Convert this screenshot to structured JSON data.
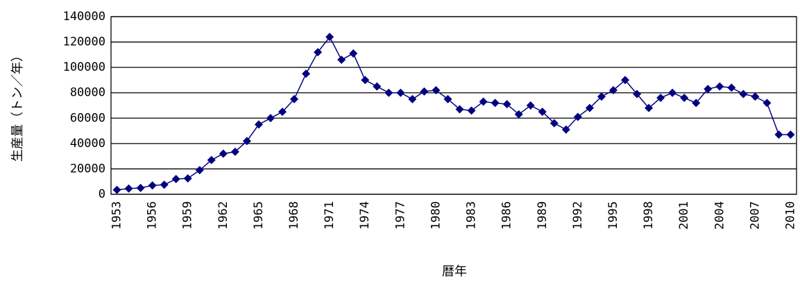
{
  "chart_data": {
    "type": "line",
    "y_axis_label": "生産量（トン／年）",
    "x_axis_label": "暦年",
    "categories": [
      "1953",
      null,
      null,
      "1956",
      null,
      null,
      "1959",
      null,
      null,
      "1962",
      null,
      null,
      "1965",
      null,
      null,
      "1968",
      null,
      null,
      "1971",
      null,
      null,
      "1974",
      null,
      null,
      "1977",
      null,
      null,
      "1980",
      null,
      null,
      "1983",
      null,
      null,
      "1986",
      null,
      null,
      "1989",
      null,
      null,
      "1992",
      null,
      null,
      "1995",
      null,
      null,
      "1998",
      null,
      null,
      "2001",
      null,
      null,
      "2004",
      null,
      null,
      "2007",
      null,
      null,
      "2010"
    ],
    "values": [
      3500,
      4500,
      5000,
      7000,
      7500,
      12000,
      12500,
      19000,
      27000,
      32000,
      33500,
      42000,
      55000,
      60000,
      65000,
      75000,
      95000,
      112000,
      124000,
      106000,
      111000,
      90000,
      85000,
      80000,
      80000,
      75000,
      81000,
      82000,
      75000,
      67000,
      66000,
      73000,
      72000,
      71000,
      63000,
      70000,
      65000,
      56000,
      51000,
      61000,
      68000,
      77000,
      82000,
      90000,
      79000,
      68000,
      76000,
      80000,
      76000,
      72000,
      83000,
      85000,
      84000,
      79000,
      77000,
      72000,
      47000,
      47000
    ],
    "color": "#000080",
    "ylim": [
      0,
      140000
    ],
    "yticks": [
      0,
      20000,
      40000,
      60000,
      80000,
      100000,
      120000,
      140000
    ],
    "grid": true
  }
}
